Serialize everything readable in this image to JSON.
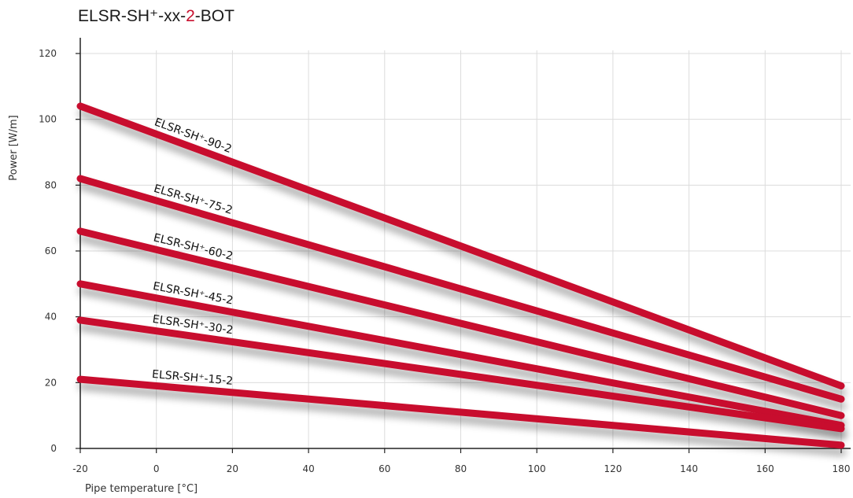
{
  "chart_data": {
    "type": "line",
    "title": {
      "prefix": "ELSR-SH⁺-xx-",
      "accent": "2",
      "suffix": "-BOT",
      "accent_color": "#c8102e"
    },
    "xlabel": "Pipe temperature [°C]",
    "ylabel": "Power [W/m]",
    "xlim": [
      -20,
      180
    ],
    "ylim": [
      0,
      120
    ],
    "x_ticks": [
      "-20",
      "0",
      "20",
      "40",
      "60",
      "80",
      "100",
      "120",
      "140",
      "160",
      "180"
    ],
    "y_ticks": [
      "0",
      "20",
      "40",
      "60",
      "80",
      "100",
      "120"
    ],
    "grid": true,
    "line_color": "#c8102e",
    "series": [
      {
        "name": "ELSR-SH⁺-90-2",
        "x": [
          -20,
          180
        ],
        "y": [
          104,
          19
        ]
      },
      {
        "name": "ELSR-SH⁺-75-2",
        "x": [
          -20,
          180
        ],
        "y": [
          82,
          15
        ]
      },
      {
        "name": "ELSR-SH⁺-60-2",
        "x": [
          -20,
          180
        ],
        "y": [
          66,
          10
        ]
      },
      {
        "name": "ELSR-SH⁺-45-2",
        "x": [
          -20,
          180
        ],
        "y": [
          50,
          7
        ]
      },
      {
        "name": "ELSR-SH⁺-30-2",
        "x": [
          -20,
          180
        ],
        "y": [
          39,
          6
        ]
      },
      {
        "name": "ELSR-SH⁺-15-2",
        "x": [
          -20,
          180
        ],
        "y": [
          21,
          1
        ]
      }
    ]
  }
}
